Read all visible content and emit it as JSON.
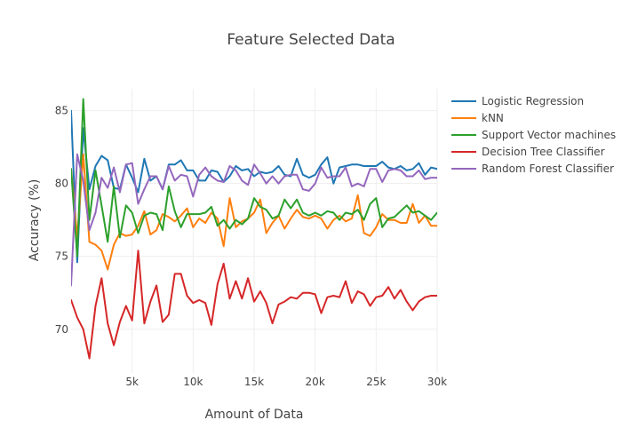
{
  "chart_data": {
    "type": "line",
    "title": "Feature Selected Data",
    "xlabel": "Amount of Data",
    "ylabel": "Accuracy (%)",
    "xlim": [
      0,
      30000
    ],
    "ylim": [
      67,
      86.5
    ],
    "xticks": [
      5000,
      10000,
      15000,
      20000,
      25000,
      30000
    ],
    "xtick_labels": [
      "5k",
      "10k",
      "15k",
      "20k",
      "25k",
      "30k"
    ],
    "yticks": [
      70,
      75,
      80,
      85
    ],
    "ytick_labels": [
      "70",
      "75",
      "80",
      "85"
    ],
    "grid": true,
    "legend_position": "top-right",
    "series": [
      {
        "name": "Logistic Regression",
        "color": "#1f77b4",
        "x": [
          0,
          500,
          1000,
          1500,
          2000,
          2500,
          3000,
          3500,
          4000,
          4500,
          5000,
          5500,
          6000,
          6500,
          7000,
          7500,
          8000,
          8500,
          9000,
          9500,
          10000,
          10500,
          11000,
          11500,
          12000,
          12500,
          13000,
          13500,
          14000,
          14500,
          15000,
          15500,
          16000,
          16500,
          17000,
          17500,
          18000,
          18500,
          19000,
          19500,
          20000,
          20500,
          21000,
          21500,
          22000,
          22500,
          23000,
          23500,
          24000,
          24500,
          25000,
          25500,
          26000,
          26500,
          27000,
          27500,
          28000,
          28500,
          29000,
          29500,
          30000
        ],
        "values": [
          85.0,
          74.6,
          83.8,
          79.6,
          81.2,
          81.9,
          81.6,
          79.7,
          79.6,
          81.3,
          80.4,
          79.4,
          81.7,
          80.2,
          80.5,
          79.6,
          81.3,
          81.3,
          81.6,
          80.9,
          80.9,
          80.2,
          80.2,
          80.9,
          80.8,
          80.1,
          80.5,
          81.2,
          80.9,
          81.0,
          80.5,
          80.8,
          80.7,
          80.8,
          81.2,
          80.6,
          80.5,
          81.7,
          80.6,
          80.4,
          80.6,
          81.3,
          81.8,
          80.0,
          81.1,
          81.2,
          81.3,
          81.3,
          81.2,
          81.2,
          81.2,
          81.5,
          81.1,
          81.0,
          81.2,
          80.9,
          81.0,
          81.4,
          80.6,
          81.1,
          81.0
        ]
      },
      {
        "name": "kNN",
        "color": "#ff7f0e",
        "x": [
          0,
          500,
          1000,
          1500,
          2000,
          2500,
          3000,
          3500,
          4000,
          4500,
          5000,
          5500,
          6000,
          6500,
          7000,
          7500,
          8000,
          8500,
          9000,
          9500,
          10000,
          10500,
          11000,
          11500,
          12000,
          12500,
          13000,
          13500,
          14000,
          14500,
          15000,
          15500,
          16000,
          16500,
          17000,
          17500,
          18000,
          18500,
          19000,
          19500,
          20000,
          20500,
          21000,
          21500,
          22000,
          22500,
          23000,
          23500,
          24000,
          24500,
          25000,
          25500,
          26000,
          26500,
          27000,
          27500,
          28000,
          28500,
          29000,
          29500,
          30000
        ],
        "values": [
          81.0,
          76.3,
          82.0,
          76.0,
          75.8,
          75.4,
          74.1,
          75.8,
          76.6,
          76.4,
          76.5,
          77.1,
          78.1,
          76.5,
          76.8,
          77.9,
          77.7,
          77.4,
          77.8,
          78.3,
          77.0,
          77.6,
          77.3,
          78.0,
          77.6,
          75.7,
          79.0,
          77.0,
          77.4,
          77.6,
          78.0,
          78.9,
          76.6,
          77.3,
          77.8,
          76.9,
          77.6,
          78.2,
          77.7,
          77.6,
          77.8,
          77.6,
          76.9,
          77.5,
          77.8,
          77.4,
          77.6,
          79.2,
          76.6,
          76.4,
          77.0,
          77.9,
          77.5,
          77.5,
          77.3,
          77.3,
          78.6,
          77.3,
          77.8,
          77.1,
          77.1
        ]
      },
      {
        "name": "Support Vector machines",
        "color": "#2ca02c",
        "x": [
          0,
          500,
          1000,
          1500,
          2000,
          2500,
          3000,
          3500,
          4000,
          4500,
          5000,
          5500,
          6000,
          6500,
          7000,
          7500,
          8000,
          8500,
          9000,
          9500,
          10000,
          10500,
          11000,
          11500,
          12000,
          12500,
          13000,
          13500,
          14000,
          14500,
          15000,
          15500,
          16000,
          16500,
          17000,
          17500,
          18000,
          18500,
          19000,
          19500,
          20000,
          20500,
          21000,
          21500,
          22000,
          22500,
          23000,
          23500,
          24000,
          24500,
          25000,
          25500,
          26000,
          26500,
          27000,
          27500,
          28000,
          28500,
          29000,
          29500,
          30000
        ],
        "values": [
          81.0,
          75.0,
          85.8,
          77.5,
          80.9,
          78.5,
          76.0,
          79.8,
          76.3,
          78.5,
          78.0,
          76.6,
          77.8,
          78.0,
          77.9,
          76.8,
          79.8,
          78.1,
          77.0,
          77.9,
          77.9,
          77.9,
          78.0,
          78.4,
          77.1,
          77.5,
          76.9,
          77.5,
          77.2,
          77.6,
          79.0,
          78.4,
          78.2,
          77.6,
          77.8,
          78.9,
          78.3,
          78.9,
          78.0,
          77.8,
          78.0,
          77.8,
          78.1,
          78.0,
          77.5,
          78.0,
          77.9,
          78.2,
          77.5,
          78.6,
          79.0,
          77.0,
          77.6,
          77.7,
          78.1,
          78.5,
          78.0,
          78.1,
          77.8,
          77.5,
          78.0
        ]
      },
      {
        "name": "Decision Tree Classifier",
        "color": "#d62728",
        "x": [
          0,
          500,
          1000,
          1500,
          2000,
          2500,
          3000,
          3500,
          4000,
          4500,
          5000,
          5500,
          6000,
          6500,
          7000,
          7500,
          8000,
          8500,
          9000,
          9500,
          10000,
          10500,
          11000,
          11500,
          12000,
          12500,
          13000,
          13500,
          14000,
          14500,
          15000,
          15500,
          16000,
          16500,
          17000,
          17500,
          18000,
          18500,
          19000,
          19500,
          20000,
          20500,
          21000,
          21500,
          22000,
          22500,
          23000,
          23500,
          24000,
          24500,
          25000,
          25500,
          26000,
          26500,
          27000,
          27500,
          28000,
          28500,
          29000,
          29500,
          30000
        ],
        "values": [
          72.0,
          70.8,
          70.0,
          68.0,
          71.6,
          73.5,
          70.4,
          68.9,
          70.5,
          71.6,
          70.6,
          75.4,
          70.4,
          71.9,
          73.0,
          70.5,
          71.0,
          73.8,
          73.8,
          72.3,
          71.8,
          72.0,
          71.8,
          70.3,
          73.1,
          74.5,
          72.1,
          73.3,
          72.1,
          73.5,
          71.9,
          72.6,
          71.8,
          70.4,
          71.7,
          71.9,
          72.2,
          72.1,
          72.5,
          72.5,
          72.4,
          71.1,
          72.2,
          72.3,
          72.2,
          73.3,
          71.8,
          72.6,
          72.4,
          71.6,
          72.2,
          72.3,
          72.9,
          72.1,
          72.7,
          71.9,
          71.3,
          71.9,
          72.2,
          72.3,
          72.3
        ]
      },
      {
        "name": "Random Forest Classifier",
        "color": "#9467bd",
        "x": [
          0,
          500,
          1000,
          1500,
          2000,
          2500,
          3000,
          3500,
          4000,
          4500,
          5000,
          5500,
          6000,
          6500,
          7000,
          7500,
          8000,
          8500,
          9000,
          9500,
          10000,
          10500,
          11000,
          11500,
          12000,
          12500,
          13000,
          13500,
          14000,
          14500,
          15000,
          15500,
          16000,
          16500,
          17000,
          17500,
          18000,
          18500,
          19000,
          19500,
          20000,
          20500,
          21000,
          21500,
          22000,
          22500,
          23000,
          23500,
          24000,
          24500,
          25000,
          25500,
          26000,
          26500,
          27000,
          27500,
          28000,
          28500,
          29000,
          29500,
          30000
        ],
        "values": [
          73.0,
          82.0,
          80.2,
          76.8,
          78.0,
          80.4,
          79.7,
          81.1,
          79.4,
          81.3,
          81.4,
          78.6,
          79.6,
          80.5,
          80.5,
          79.6,
          81.2,
          80.2,
          80.6,
          80.5,
          79.1,
          80.6,
          81.1,
          80.5,
          80.2,
          80.1,
          81.2,
          80.9,
          80.2,
          79.9,
          81.3,
          80.7,
          80.0,
          80.5,
          80.0,
          80.5,
          80.6,
          80.6,
          79.6,
          79.5,
          80.0,
          81.1,
          80.4,
          80.5,
          80.5,
          81.1,
          79.8,
          80.0,
          79.8,
          81.0,
          81.0,
          80.1,
          80.9,
          81.0,
          80.9,
          80.5,
          80.5,
          80.9,
          80.3,
          80.4,
          80.4
        ]
      }
    ]
  }
}
